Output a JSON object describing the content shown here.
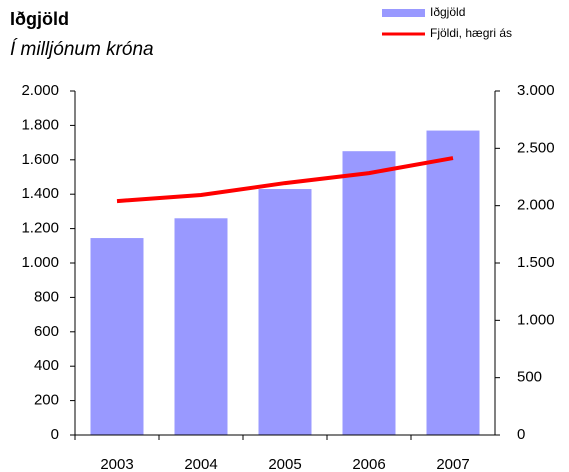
{
  "chart_data": {
    "type": "bar_line",
    "title": "Iðgjöld",
    "subtitle": "Í milljónum króna",
    "categories": [
      "2003",
      "2004",
      "2005",
      "2006",
      "2007"
    ],
    "series": [
      {
        "name": "Iðgjöld",
        "color": "#9999ff",
        "type": "bar",
        "values": [
          1145,
          1260,
          1430,
          1650,
          1770
        ]
      },
      {
        "name": "Fjöldi, hægri ás",
        "color": "#ff0000",
        "type": "line",
        "axis": "y2",
        "values": [
          2040,
          2093,
          2197,
          2284,
          2415
        ]
      }
    ],
    "ylim": [
      0,
      2000
    ],
    "yticks": [
      0,
      200,
      400,
      600,
      800,
      {
        "value": 1000,
        "label": "1.000"
      },
      {
        "value": 1200,
        "label": "1.200"
      },
      {
        "value": 1400,
        "label": "1.400"
      },
      {
        "value": 1600,
        "label": "1.600"
      },
      {
        "value": 1800,
        "label": "1.800"
      },
      {
        "value": 2000,
        "label": "2.000"
      }
    ],
    "y2lim": [
      0,
      3000
    ],
    "y2ticks": [
      0,
      500,
      {
        "value": 1000,
        "label": "1.000"
      },
      {
        "value": 1500,
        "label": "1.500"
      },
      {
        "value": 2000,
        "label": "2.000"
      },
      {
        "value": 2500,
        "label": "2.500"
      },
      {
        "value": 3000,
        "label": "3.000"
      }
    ],
    "legend": "top-right"
  }
}
